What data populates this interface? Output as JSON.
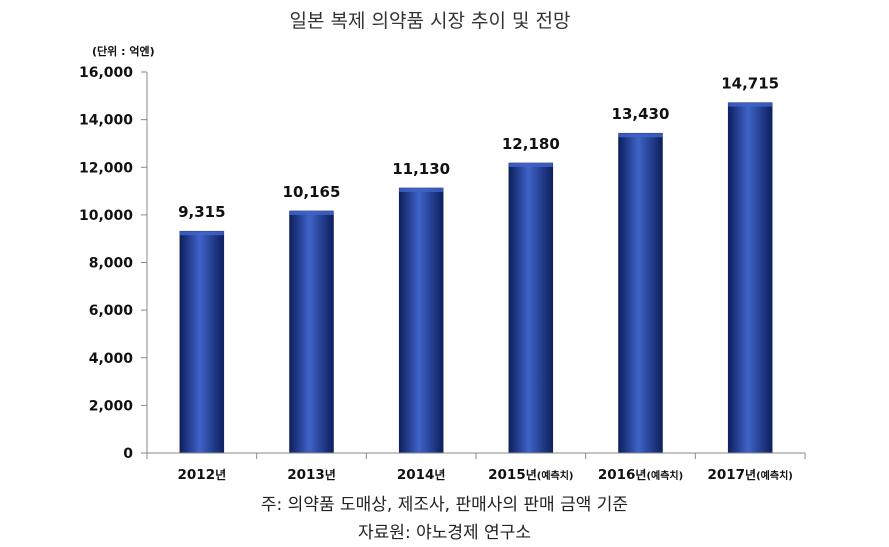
{
  "chart_data": {
    "type": "bar",
    "title": "일본 복제 의약품 시장 추이 및 전망",
    "unit_label": "(단위 : 억엔)",
    "categories": [
      {
        "year": "2012",
        "suffix": "년",
        "note": ""
      },
      {
        "year": "2013",
        "suffix": "년",
        "note": ""
      },
      {
        "year": "2014",
        "suffix": "년",
        "note": ""
      },
      {
        "year": "2015",
        "suffix": "년",
        "note": "(예측치)"
      },
      {
        "year": "2016",
        "suffix": "년",
        "note": "(예측치)"
      },
      {
        "year": "2017",
        "suffix": "년",
        "note": "(예측치)"
      }
    ],
    "values": [
      9315,
      10165,
      11130,
      12180,
      13430,
      14715
    ],
    "value_labels": [
      "9,315",
      "10,165",
      "11,130",
      "12,180",
      "13,430",
      "14,715"
    ],
    "ylim": [
      0,
      16000
    ],
    "yticks": [
      0,
      2000,
      4000,
      6000,
      8000,
      10000,
      12000,
      14000,
      16000
    ],
    "ytick_labels": [
      "0",
      "2,000",
      "4,000",
      "6,000",
      "8,000",
      "10,000",
      "12,000",
      "14,000",
      "16,000"
    ],
    "grid": false,
    "legend": "none",
    "bar_color": "#1f3a8f",
    "bar_dark": "#0d1f5e",
    "bar_light": "#3f63c8"
  },
  "footnotes": {
    "note": "주: 의약품 도매상, 제조사, 판매사의 판매 금액 기준",
    "source": "자료원: 야노경제 연구소"
  }
}
